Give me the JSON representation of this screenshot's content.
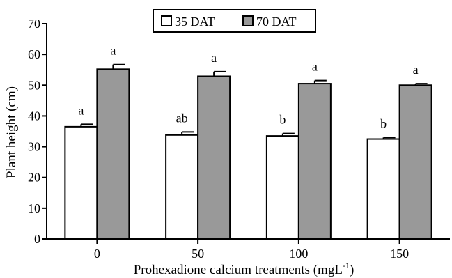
{
  "chart_data": {
    "type": "bar",
    "xlabel": "Prohexadione calcium treatments (mgL",
    "xlabel_superscript": "-1",
    "xlabel_suffix": ")",
    "ylabel": "Plant height (cm)",
    "ylim": [
      0,
      70
    ],
    "yticks": [
      "0",
      "10",
      "20",
      "30",
      "40",
      "50",
      "60",
      "70"
    ],
    "categories": [
      "0",
      "50",
      "100",
      "150"
    ],
    "legend_position": "top-center",
    "grid": false,
    "series": [
      {
        "name": "35 DAT",
        "color": "#ffffff",
        "values": [
          36.5,
          33.8,
          33.5,
          32.5
        ],
        "errors": [
          0.8,
          1.0,
          0.8,
          0.5
        ],
        "labels": [
          "a",
          "ab",
          "b",
          "b"
        ]
      },
      {
        "name": "70 DAT",
        "color": "#999999",
        "values": [
          55.2,
          52.9,
          50.5,
          50.0
        ],
        "errors": [
          1.5,
          1.5,
          1.0,
          0.5
        ],
        "labels": [
          "a",
          "a",
          "a",
          "a"
        ]
      }
    ]
  }
}
